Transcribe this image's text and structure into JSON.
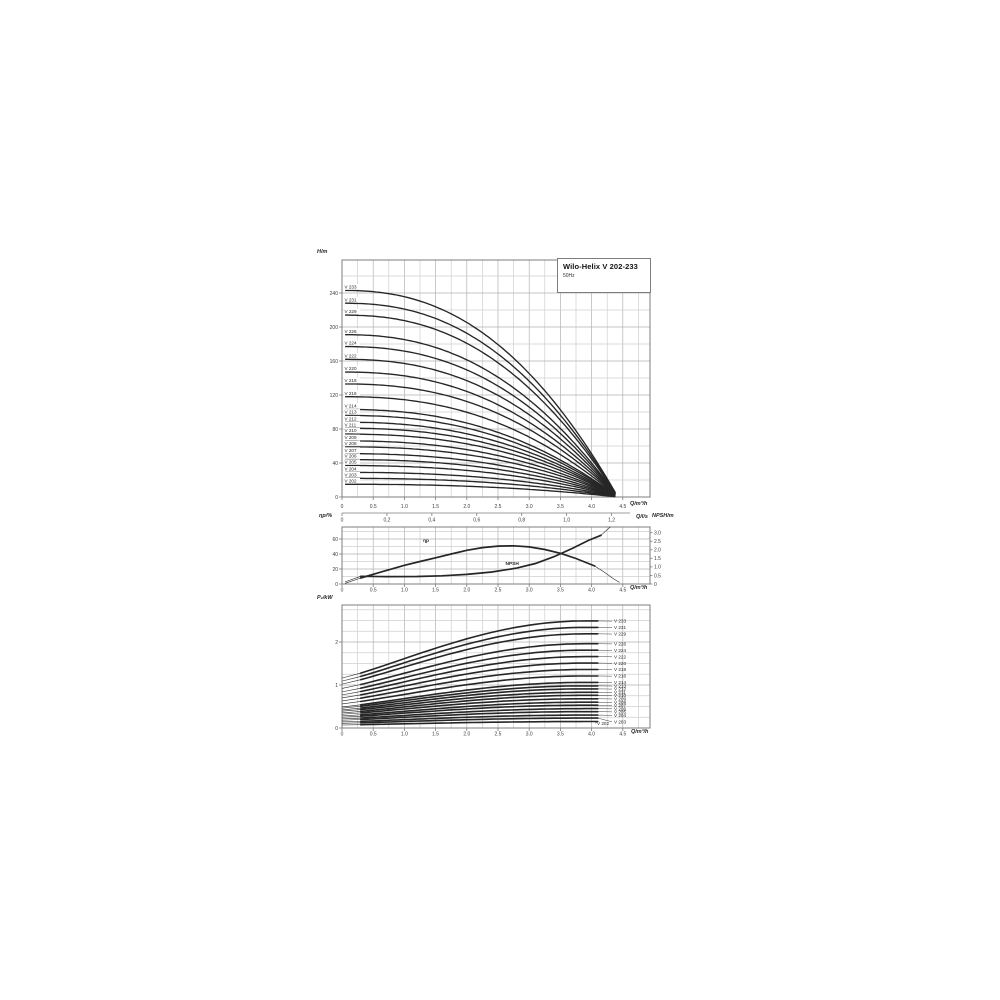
{
  "colors": {
    "curve": "#262626",
    "grid_minor": "#cfcfcf",
    "grid_major": "#b2b2b2",
    "frame": "#7d7d7d",
    "text": "#3c3c3c",
    "bg": "#ffffff"
  },
  "chart_data": [
    {
      "id": "head_vs_flow",
      "type": "line",
      "title": "Wilo-Helix V 202-233",
      "subtitle": "50Hz",
      "ylabel": "H/m",
      "xlabel": "Q/m³/h",
      "xlabel_secondary": "Q/l/s",
      "xlim": [
        0,
        4.93
      ],
      "ylim": [
        0,
        279
      ],
      "grid": true,
      "x_ticks": [
        {
          "v": 0,
          "l": "0"
        },
        {
          "v": 0.5,
          "l": "0.5"
        },
        {
          "v": 1,
          "l": "1.0"
        },
        {
          "v": 1.5,
          "l": "1.5"
        },
        {
          "v": 2,
          "l": "2.0"
        },
        {
          "v": 2.5,
          "l": "2.5"
        },
        {
          "v": 3,
          "l": "3.0"
        },
        {
          "v": 3.5,
          "l": "3.5"
        },
        {
          "v": 4,
          "l": "4.0"
        },
        {
          "v": 4.5,
          "l": "4.5"
        }
      ],
      "x_ticks_lps": [
        {
          "v": 0,
          "l": "0"
        },
        {
          "v": 0.2,
          "l": "0,2"
        },
        {
          "v": 0.4,
          "l": "0,4"
        },
        {
          "v": 0.6,
          "l": "0,6"
        },
        {
          "v": 0.8,
          "l": "0,8"
        },
        {
          "v": 1.0,
          "l": "1,0"
        },
        {
          "v": 1.2,
          "l": "1,2"
        }
      ],
      "y_ticks": [
        {
          "v": 0,
          "l": "0"
        },
        {
          "v": 40,
          "l": "40"
        },
        {
          "v": 80,
          "l": "80"
        },
        {
          "v": 120,
          "l": "120"
        },
        {
          "v": 160,
          "l": "160"
        },
        {
          "v": 200,
          "l": "200"
        },
        {
          "v": 240,
          "l": "240"
        }
      ],
      "curve_model": {
        "note": "H(Q)=H0*(1-(Q/q_converge)^exponent)",
        "q_start": 0.05,
        "q_plot_end": 4.38,
        "q_converge": 4.42,
        "exponent": 2.35
      },
      "series": [
        {
          "name": "V 233",
          "shutoff_head_m": 243
        },
        {
          "name": "V 231",
          "shutoff_head_m": 228
        },
        {
          "name": "V 229",
          "shutoff_head_m": 214
        },
        {
          "name": "V 226",
          "shutoff_head_m": 191
        },
        {
          "name": "V 224",
          "shutoff_head_m": 177
        },
        {
          "name": "V 222",
          "shutoff_head_m": 162
        },
        {
          "name": "V 220",
          "shutoff_head_m": 147
        },
        {
          "name": "V 218",
          "shutoff_head_m": 133
        },
        {
          "name": "V 216",
          "shutoff_head_m": 118
        },
        {
          "name": "V 214",
          "shutoff_head_m": 103
        },
        {
          "name": "V 213",
          "shutoff_head_m": 96
        },
        {
          "name": "V 212",
          "shutoff_head_m": 88
        },
        {
          "name": "V 211",
          "shutoff_head_m": 81
        },
        {
          "name": "V 210",
          "shutoff_head_m": 74
        },
        {
          "name": "V 209",
          "shutoff_head_m": 66
        },
        {
          "name": "V 208",
          "shutoff_head_m": 59
        },
        {
          "name": "V 207",
          "shutoff_head_m": 51
        },
        {
          "name": "V 206",
          "shutoff_head_m": 44
        },
        {
          "name": "V 205",
          "shutoff_head_m": 37
        },
        {
          "name": "V 204",
          "shutoff_head_m": 29
        },
        {
          "name": "V 203",
          "shutoff_head_m": 22
        },
        {
          "name": "V 202",
          "shutoff_head_m": 15
        }
      ]
    },
    {
      "id": "efficiency_and_npsh",
      "type": "line",
      "ylabel_left": "ηp/%",
      "ylabel_right": "NPSH/m",
      "xlabel": "Q/m³/h",
      "xlim": [
        0,
        4.93
      ],
      "ylim_left": [
        0,
        76
      ],
      "ylim_right": [
        0,
        3.36
      ],
      "grid": true,
      "x_ticks": [
        {
          "v": 0,
          "l": "0"
        },
        {
          "v": 0.5,
          "l": "0.5"
        },
        {
          "v": 1,
          "l": "1.0"
        },
        {
          "v": 1.5,
          "l": "1.5"
        },
        {
          "v": 2,
          "l": "2.0"
        },
        {
          "v": 2.5,
          "l": "2.5"
        },
        {
          "v": 3,
          "l": "3.0"
        },
        {
          "v": 3.5,
          "l": "3.5"
        },
        {
          "v": 4,
          "l": "4.0"
        },
        {
          "v": 4.5,
          "l": "4.5"
        }
      ],
      "y_ticks_left": [
        {
          "v": 0,
          "l": "0"
        },
        {
          "v": 20,
          "l": "20"
        },
        {
          "v": 40,
          "l": "40"
        },
        {
          "v": 60,
          "l": "60"
        }
      ],
      "y_ticks_right": [
        {
          "v": 0,
          "l": "0"
        },
        {
          "v": 0.5,
          "l": "0.5"
        },
        {
          "v": 1,
          "l": "1.0"
        },
        {
          "v": 1.5,
          "l": "1.5"
        },
        {
          "v": 2,
          "l": "2.0"
        },
        {
          "v": 2.5,
          "l": "2.5"
        },
        {
          "v": 3,
          "l": "3.0"
        }
      ],
      "series": [
        {
          "name": "ηp",
          "axis": "left",
          "thick_range": [
            0.3,
            4.05
          ],
          "label_pos": [
            1.3,
            56
          ],
          "points": [
            [
              0.05,
              1
            ],
            [
              0.3,
              8
            ],
            [
              0.5,
              13
            ],
            [
              0.75,
              19
            ],
            [
              1.0,
              25
            ],
            [
              1.25,
              30
            ],
            [
              1.5,
              35
            ],
            [
              1.75,
              40
            ],
            [
              2.0,
              45
            ],
            [
              2.25,
              48.5
            ],
            [
              2.5,
              50.5
            ],
            [
              2.75,
              51
            ],
            [
              3.0,
              49.5
            ],
            [
              3.25,
              46
            ],
            [
              3.5,
              41
            ],
            [
              3.75,
              34
            ],
            [
              4.05,
              24
            ],
            [
              4.2,
              16
            ],
            [
              4.35,
              7
            ],
            [
              4.45,
              2
            ]
          ]
        },
        {
          "name": "NPSH",
          "axis": "right",
          "thick_range": [
            0.3,
            4.15
          ],
          "label_pos": [
            2.62,
            1.12
          ],
          "points": [
            [
              0.05,
              0.12
            ],
            [
              0.3,
              0.45
            ],
            [
              0.7,
              0.43
            ],
            [
              1.2,
              0.44
            ],
            [
              1.6,
              0.48
            ],
            [
              2.0,
              0.56
            ],
            [
              2.4,
              0.7
            ],
            [
              2.8,
              0.93
            ],
            [
              3.1,
              1.2
            ],
            [
              3.4,
              1.6
            ],
            [
              3.7,
              2.1
            ],
            [
              3.95,
              2.55
            ],
            [
              4.15,
              2.85
            ],
            [
              4.3,
              3.34
            ]
          ]
        }
      ]
    },
    {
      "id": "power_vs_flow",
      "type": "line",
      "ylabel": "P₂/kW",
      "xlabel": "Q/m³/h",
      "xlim": [
        0,
        4.93
      ],
      "ylim": [
        0,
        2.86
      ],
      "grid": true,
      "x_ticks": [
        {
          "v": 0,
          "l": "0"
        },
        {
          "v": 0.5,
          "l": "0.5"
        },
        {
          "v": 1,
          "l": "1.0"
        },
        {
          "v": 1.5,
          "l": "1.5"
        },
        {
          "v": 2,
          "l": "2.0"
        },
        {
          "v": 2.5,
          "l": "2.5"
        },
        {
          "v": 3,
          "l": "3.0"
        },
        {
          "v": 3.5,
          "l": "3.5"
        },
        {
          "v": 4,
          "l": "4.0"
        },
        {
          "v": 4.5,
          "l": "4.5"
        }
      ],
      "y_ticks": [
        {
          "v": 0,
          "l": "0"
        },
        {
          "v": 1,
          "l": "1"
        },
        {
          "v": 2,
          "l": "2"
        }
      ],
      "curve_model": {
        "note": "P(Q)=P0+(Pmax-P0)*sin(pi*min(Q,qf)/(2*qf))^e",
        "q_thin_end": 0.3,
        "q_flat_start": 3.9,
        "q_end": 4.1,
        "easing_exponent": 1.15
      },
      "series": [
        {
          "name": "V 233",
          "p2_kw_shutoff": 1.16,
          "p2_kw_max": 2.49
        },
        {
          "name": "V 231",
          "p2_kw_shutoff": 1.09,
          "p2_kw_max": 2.34
        },
        {
          "name": "V 229",
          "p2_kw_shutoff": 1.02,
          "p2_kw_max": 2.19
        },
        {
          "name": "V 226",
          "p2_kw_shutoff": 0.92,
          "p2_kw_max": 1.96
        },
        {
          "name": "V 224",
          "p2_kw_shutoff": 0.84,
          "p2_kw_max": 1.81
        },
        {
          "name": "V 222",
          "p2_kw_shutoff": 0.77,
          "p2_kw_max": 1.66
        },
        {
          "name": "V 220",
          "p2_kw_shutoff": 0.7,
          "p2_kw_max": 1.51
        },
        {
          "name": "V 218",
          "p2_kw_shutoff": 0.63,
          "p2_kw_max": 1.36
        },
        {
          "name": "V 216",
          "p2_kw_shutoff": 0.56,
          "p2_kw_max": 1.21
        },
        {
          "name": "V 214",
          "p2_kw_shutoff": 0.49,
          "p2_kw_max": 1.06
        },
        {
          "name": "V 213",
          "p2_kw_shutoff": 0.46,
          "p2_kw_max": 0.98
        },
        {
          "name": "V 212",
          "p2_kw_shutoff": 0.42,
          "p2_kw_max": 0.91
        },
        {
          "name": "V 211",
          "p2_kw_shutoff": 0.39,
          "p2_kw_max": 0.83
        },
        {
          "name": "V 210",
          "p2_kw_shutoff": 0.35,
          "p2_kw_max": 0.76
        },
        {
          "name": "V 209",
          "p2_kw_shutoff": 0.32,
          "p2_kw_max": 0.68
        },
        {
          "name": "V 208",
          "p2_kw_shutoff": 0.28,
          "p2_kw_max": 0.6
        },
        {
          "name": "V 207",
          "p2_kw_shutoff": 0.25,
          "p2_kw_max": 0.53
        },
        {
          "name": "V 206",
          "p2_kw_shutoff": 0.21,
          "p2_kw_max": 0.45
        },
        {
          "name": "V 205",
          "p2_kw_shutoff": 0.18,
          "p2_kw_max": 0.38
        },
        {
          "name": "V 204",
          "p2_kw_shutoff": 0.14,
          "p2_kw_max": 0.3
        },
        {
          "name": "V 203",
          "p2_kw_shutoff": 0.11,
          "p2_kw_max": 0.23,
          "label_offset": [
            0,
            3.5
          ]
        },
        {
          "name": "V 202",
          "p2_kw_shutoff": 0.07,
          "p2_kw_max": 0.15,
          "label_offset": [
            -17,
            1.5
          ]
        }
      ]
    }
  ]
}
